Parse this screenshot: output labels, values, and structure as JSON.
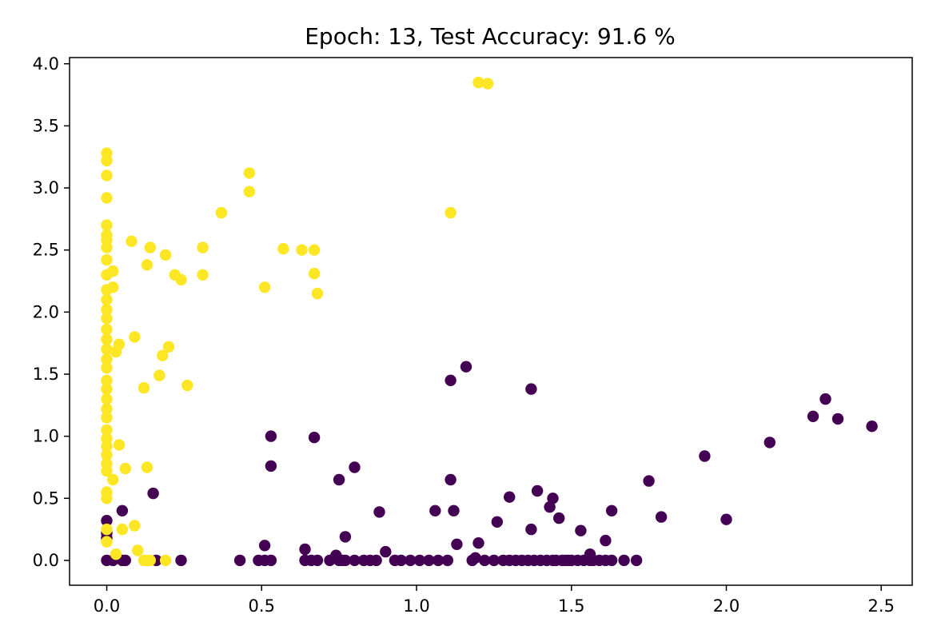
{
  "chart_data": {
    "type": "scatter",
    "title": "Epoch: 13, Test Accuracy: 91.6 %",
    "xlabel": "",
    "ylabel": "",
    "xlim": [
      -0.12,
      2.6
    ],
    "ylim": [
      -0.2,
      4.05
    ],
    "xticks": [
      0.0,
      0.5,
      1.0,
      1.5,
      2.0,
      2.5
    ],
    "yticks": [
      0.0,
      0.5,
      1.0,
      1.5,
      2.0,
      2.5,
      3.0,
      3.5,
      4.0
    ],
    "xtick_labels": [
      "0.0",
      "0.5",
      "1.0",
      "1.5",
      "2.0",
      "2.5"
    ],
    "ytick_labels": [
      "0.0",
      "0.5",
      "1.0",
      "1.5",
      "2.0",
      "2.5",
      "3.0",
      "3.5",
      "4.0"
    ],
    "grid": false,
    "legend": "none",
    "colors": {
      "class_0": "#440154",
      "class_1": "#fde725"
    },
    "series": [
      {
        "class": 0,
        "color": "#440154",
        "points": [
          [
            0.0,
            0.0
          ],
          [
            0.0,
            0.18
          ],
          [
            0.0,
            0.22
          ],
          [
            0.0,
            0.32
          ],
          [
            0.02,
            0.0
          ],
          [
            0.05,
            0.0
          ],
          [
            0.06,
            0.0
          ],
          [
            0.05,
            0.4
          ],
          [
            0.15,
            0.54
          ],
          [
            0.16,
            0.0
          ],
          [
            0.24,
            0.0
          ],
          [
            0.43,
            0.0
          ],
          [
            0.49,
            0.0
          ],
          [
            0.51,
            0.12
          ],
          [
            0.51,
            0.0
          ],
          [
            0.53,
            0.0
          ],
          [
            0.53,
            0.76
          ],
          [
            0.53,
            1.0
          ],
          [
            0.64,
            0.09
          ],
          [
            0.64,
            0.0
          ],
          [
            0.66,
            0.0
          ],
          [
            0.67,
            0.99
          ],
          [
            0.68,
            0.0
          ],
          [
            0.72,
            0.0
          ],
          [
            0.74,
            0.04
          ],
          [
            0.75,
            0.65
          ],
          [
            0.75,
            0.0
          ],
          [
            0.76,
            0.0
          ],
          [
            0.77,
            0.0
          ],
          [
            0.77,
            0.19
          ],
          [
            0.8,
            0.75
          ],
          [
            0.8,
            0.0
          ],
          [
            0.83,
            0.0
          ],
          [
            0.85,
            0.0
          ],
          [
            0.87,
            0.0
          ],
          [
            0.88,
            0.39
          ],
          [
            0.9,
            0.07
          ],
          [
            0.93,
            0.0
          ],
          [
            0.95,
            0.0
          ],
          [
            0.98,
            0.0
          ],
          [
            1.01,
            0.0
          ],
          [
            1.04,
            0.0
          ],
          [
            1.06,
            0.4
          ],
          [
            1.07,
            0.0
          ],
          [
            1.1,
            0.0
          ],
          [
            1.11,
            0.65
          ],
          [
            1.11,
            1.45
          ],
          [
            1.12,
            0.4
          ],
          [
            1.13,
            0.13
          ],
          [
            1.16,
            1.56
          ],
          [
            1.18,
            0.0
          ],
          [
            1.19,
            0.02
          ],
          [
            1.2,
            0.14
          ],
          [
            1.22,
            0.0
          ],
          [
            1.25,
            0.0
          ],
          [
            1.26,
            0.31
          ],
          [
            1.28,
            0.0
          ],
          [
            1.3,
            0.0
          ],
          [
            1.3,
            0.51
          ],
          [
            1.32,
            0.0
          ],
          [
            1.34,
            0.0
          ],
          [
            1.36,
            0.0
          ],
          [
            1.37,
            1.38
          ],
          [
            1.37,
            0.25
          ],
          [
            1.38,
            0.0
          ],
          [
            1.39,
            0.56
          ],
          [
            1.4,
            0.0
          ],
          [
            1.42,
            0.0
          ],
          [
            1.43,
            0.43
          ],
          [
            1.44,
            0.5
          ],
          [
            1.44,
            0.0
          ],
          [
            1.45,
            0.0
          ],
          [
            1.46,
            0.34
          ],
          [
            1.47,
            0.0
          ],
          [
            1.48,
            0.0
          ],
          [
            1.49,
            0.0
          ],
          [
            1.5,
            0.0
          ],
          [
            1.52,
            0.0
          ],
          [
            1.53,
            0.24
          ],
          [
            1.54,
            0.0
          ],
          [
            1.56,
            0.0
          ],
          [
            1.56,
            0.05
          ],
          [
            1.57,
            0.0
          ],
          [
            1.59,
            0.0
          ],
          [
            1.61,
            0.16
          ],
          [
            1.61,
            0.0
          ],
          [
            1.63,
            0.4
          ],
          [
            1.63,
            0.0
          ],
          [
            1.67,
            0.0
          ],
          [
            1.71,
            0.0
          ],
          [
            1.75,
            0.64
          ],
          [
            1.79,
            0.35
          ],
          [
            1.93,
            0.84
          ],
          [
            2.0,
            0.33
          ],
          [
            2.14,
            0.95
          ],
          [
            2.28,
            1.16
          ],
          [
            2.32,
            1.3
          ],
          [
            2.36,
            1.14
          ],
          [
            2.47,
            1.08
          ]
        ]
      },
      {
        "class": 1,
        "color": "#fde725",
        "points": [
          [
            0.0,
            0.15
          ],
          [
            0.0,
            0.25
          ],
          [
            0.0,
            0.5
          ],
          [
            0.0,
            0.55
          ],
          [
            0.0,
            0.72
          ],
          [
            0.0,
            0.78
          ],
          [
            0.0,
            0.85
          ],
          [
            0.0,
            0.92
          ],
          [
            0.0,
            0.98
          ],
          [
            0.0,
            1.05
          ],
          [
            0.0,
            1.15
          ],
          [
            0.0,
            1.22
          ],
          [
            0.0,
            1.3
          ],
          [
            0.0,
            1.38
          ],
          [
            0.0,
            1.45
          ],
          [
            0.0,
            1.55
          ],
          [
            0.0,
            1.62
          ],
          [
            0.0,
            1.7
          ],
          [
            0.0,
            1.78
          ],
          [
            0.0,
            1.86
          ],
          [
            0.0,
            1.95
          ],
          [
            0.0,
            2.02
          ],
          [
            0.0,
            2.1
          ],
          [
            0.0,
            2.18
          ],
          [
            0.0,
            2.3
          ],
          [
            0.0,
            2.42
          ],
          [
            0.0,
            2.52
          ],
          [
            0.0,
            2.58
          ],
          [
            0.0,
            2.62
          ],
          [
            0.0,
            2.7
          ],
          [
            0.0,
            2.92
          ],
          [
            0.0,
            3.1
          ],
          [
            0.0,
            3.22
          ],
          [
            0.0,
            3.28
          ],
          [
            0.02,
            0.65
          ],
          [
            0.02,
            2.2
          ],
          [
            0.02,
            2.33
          ],
          [
            0.03,
            0.05
          ],
          [
            0.03,
            1.68
          ],
          [
            0.04,
            0.93
          ],
          [
            0.04,
            1.74
          ],
          [
            0.05,
            0.25
          ],
          [
            0.06,
            0.74
          ],
          [
            0.08,
            2.57
          ],
          [
            0.09,
            1.8
          ],
          [
            0.09,
            0.28
          ],
          [
            0.1,
            0.08
          ],
          [
            0.12,
            1.39
          ],
          [
            0.12,
            0.0
          ],
          [
            0.13,
            0.0
          ],
          [
            0.13,
            0.75
          ],
          [
            0.13,
            2.38
          ],
          [
            0.14,
            0.0
          ],
          [
            0.14,
            2.52
          ],
          [
            0.17,
            1.49
          ],
          [
            0.18,
            1.65
          ],
          [
            0.19,
            2.46
          ],
          [
            0.19,
            0.0
          ],
          [
            0.2,
            1.72
          ],
          [
            0.22,
            2.3
          ],
          [
            0.24,
            2.26
          ],
          [
            0.26,
            1.41
          ],
          [
            0.31,
            2.3
          ],
          [
            0.31,
            2.52
          ],
          [
            0.37,
            2.8
          ],
          [
            0.46,
            2.97
          ],
          [
            0.46,
            3.12
          ],
          [
            0.51,
            2.2
          ],
          [
            0.57,
            2.51
          ],
          [
            0.63,
            2.5
          ],
          [
            0.67,
            2.31
          ],
          [
            0.67,
            2.5
          ],
          [
            0.68,
            2.15
          ],
          [
            1.11,
            2.8
          ],
          [
            1.2,
            3.85
          ],
          [
            1.23,
            3.84
          ]
        ]
      }
    ]
  }
}
